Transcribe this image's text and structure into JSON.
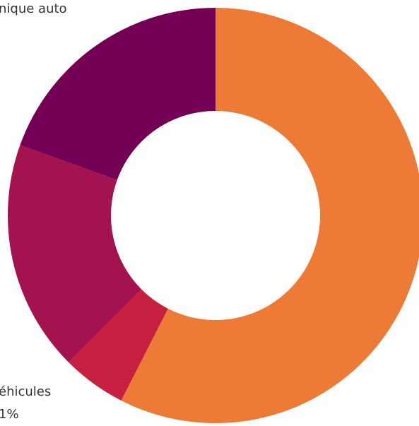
{
  "chart_data": {
    "type": "pie",
    "style": "donut",
    "slices": [
      {
        "label": "",
        "value": 57.5,
        "color": "#ED7A35"
      },
      {
        "label": "",
        "value": 5.0,
        "color": "#C61F40"
      },
      {
        "label": "",
        "value": 18.0,
        "color": "#A31350"
      },
      {
        "label": "",
        "value": 19.5,
        "color": "#740055"
      }
    ],
    "visible_labels": [
      {
        "text": "nique auto",
        "slice": 3
      },
      {
        "text": "éhicules",
        "slice": 1
      },
      {
        "text": "1%",
        "slice": 1
      }
    ]
  }
}
